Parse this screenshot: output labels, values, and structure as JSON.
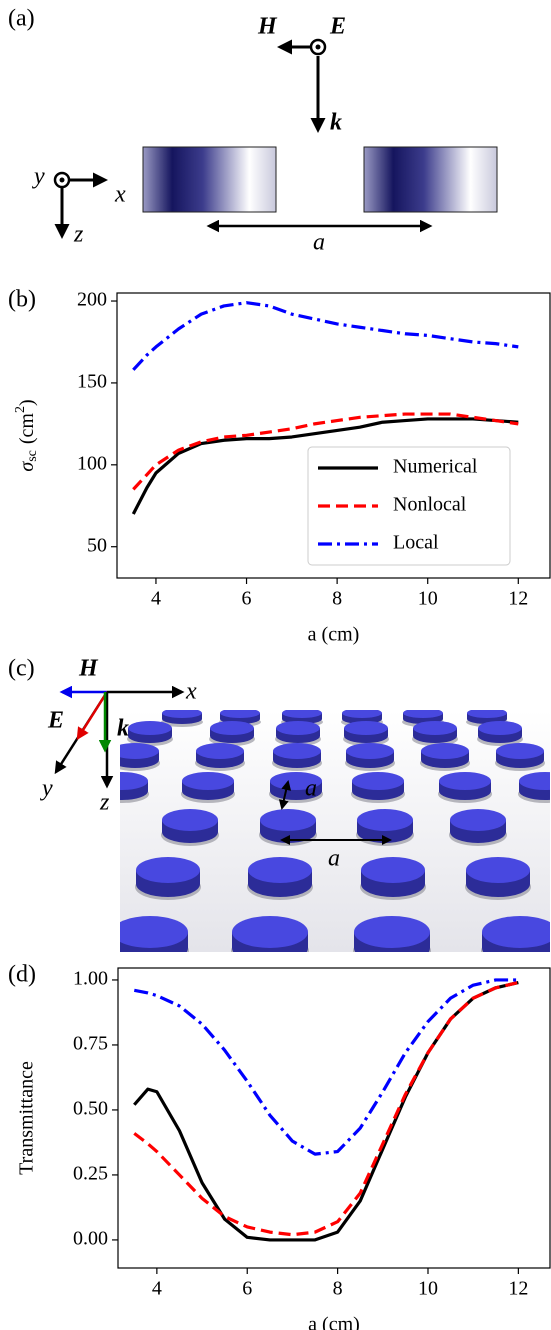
{
  "chart_data": [
    {
      "type": "line",
      "label": "(b)",
      "xlabel": "a (cm)",
      "ylabel": {
        "symbol": "σ",
        "sub": "sc",
        "unit": "(cm",
        "sup": "2",
        "end": ")"
      },
      "x": [
        3.5,
        3.8,
        4,
        4.5,
        5,
        5.5,
        6,
        6.5,
        7,
        7.5,
        8,
        8.5,
        9,
        9.5,
        10,
        10.5,
        11,
        11.5,
        12
      ],
      "series": [
        {
          "name": "Numerical",
          "color": "#000000",
          "style": "solid",
          "values": [
            70,
            86,
            95,
            107,
            113,
            115,
            116,
            116,
            117,
            119,
            121,
            123,
            126,
            127,
            128,
            128,
            128,
            127,
            126
          ]
        },
        {
          "name": "Nonlocal",
          "color": "#ff0000",
          "style": "dashed",
          "values": [
            85,
            94,
            100,
            109,
            114,
            117,
            118,
            120,
            122,
            125,
            127,
            129,
            130,
            131,
            131,
            131,
            129,
            127,
            125
          ]
        },
        {
          "name": "Local",
          "color": "#0000ff",
          "style": "dashdot",
          "values": [
            158,
            167,
            172,
            183,
            192,
            197,
            199,
            197,
            192,
            189,
            186,
            184,
            182,
            180,
            179,
            177,
            175,
            174,
            172
          ]
        }
      ],
      "xlim": [
        3.14,
        12.7
      ],
      "xticks": [
        4,
        6,
        8,
        10,
        12
      ],
      "ylim": [
        30.9,
        204.9
      ],
      "yticks": [
        50,
        100,
        150,
        200
      ],
      "legend": "lower right"
    },
    {
      "type": "line",
      "label": "(d)",
      "xlabel": "a (cm)",
      "ylabel": "Transmittance",
      "x": [
        3.5,
        3.8,
        4,
        4.5,
        5,
        5.5,
        6,
        6.5,
        7,
        7.5,
        8,
        8.5,
        9,
        9.5,
        10,
        10.5,
        11,
        11.5,
        12
      ],
      "series": [
        {
          "color": "#000000",
          "style": "solid",
          "values": [
            0.52,
            0.58,
            0.57,
            0.42,
            0.22,
            0.08,
            0.01,
            0.0,
            0.0,
            0.0,
            0.03,
            0.15,
            0.35,
            0.55,
            0.72,
            0.85,
            0.93,
            0.97,
            0.99
          ]
        },
        {
          "color": "#ff0000",
          "style": "dashed",
          "values": [
            0.41,
            0.37,
            0.34,
            0.25,
            0.16,
            0.09,
            0.05,
            0.03,
            0.02,
            0.03,
            0.07,
            0.18,
            0.37,
            0.56,
            0.72,
            0.85,
            0.93,
            0.97,
            0.99
          ]
        },
        {
          "color": "#0000ff",
          "style": "dashdot",
          "values": [
            0.96,
            0.95,
            0.94,
            0.9,
            0.83,
            0.73,
            0.61,
            0.48,
            0.38,
            0.33,
            0.34,
            0.43,
            0.57,
            0.72,
            0.84,
            0.93,
            0.98,
            1.0,
            1.0
          ]
        }
      ],
      "xlim": [
        3.14,
        12.7
      ],
      "xticks": [
        4,
        6,
        8,
        10,
        12
      ],
      "ylim": [
        -0.108,
        1.046
      ],
      "yticks": [
        {
          "value": 0,
          "label": "0.00"
        },
        {
          "value": 0.25,
          "label": "0.25"
        },
        {
          "value": 0.5,
          "label": "0.50"
        },
        {
          "value": 0.75,
          "label": "0.75"
        },
        {
          "value": 1,
          "label": "1.00"
        }
      ]
    }
  ],
  "diagrams": {
    "a": {
      "label": "(a)",
      "H": "H",
      "E": "E",
      "k": "k",
      "x": "x",
      "y": "y",
      "z": "z",
      "a": "a"
    },
    "c": {
      "label": "(c)",
      "H": "H",
      "E": "E",
      "k": "k",
      "x": "x",
      "y": "y",
      "z": "z",
      "a1": "a",
      "a2": "a"
    }
  }
}
